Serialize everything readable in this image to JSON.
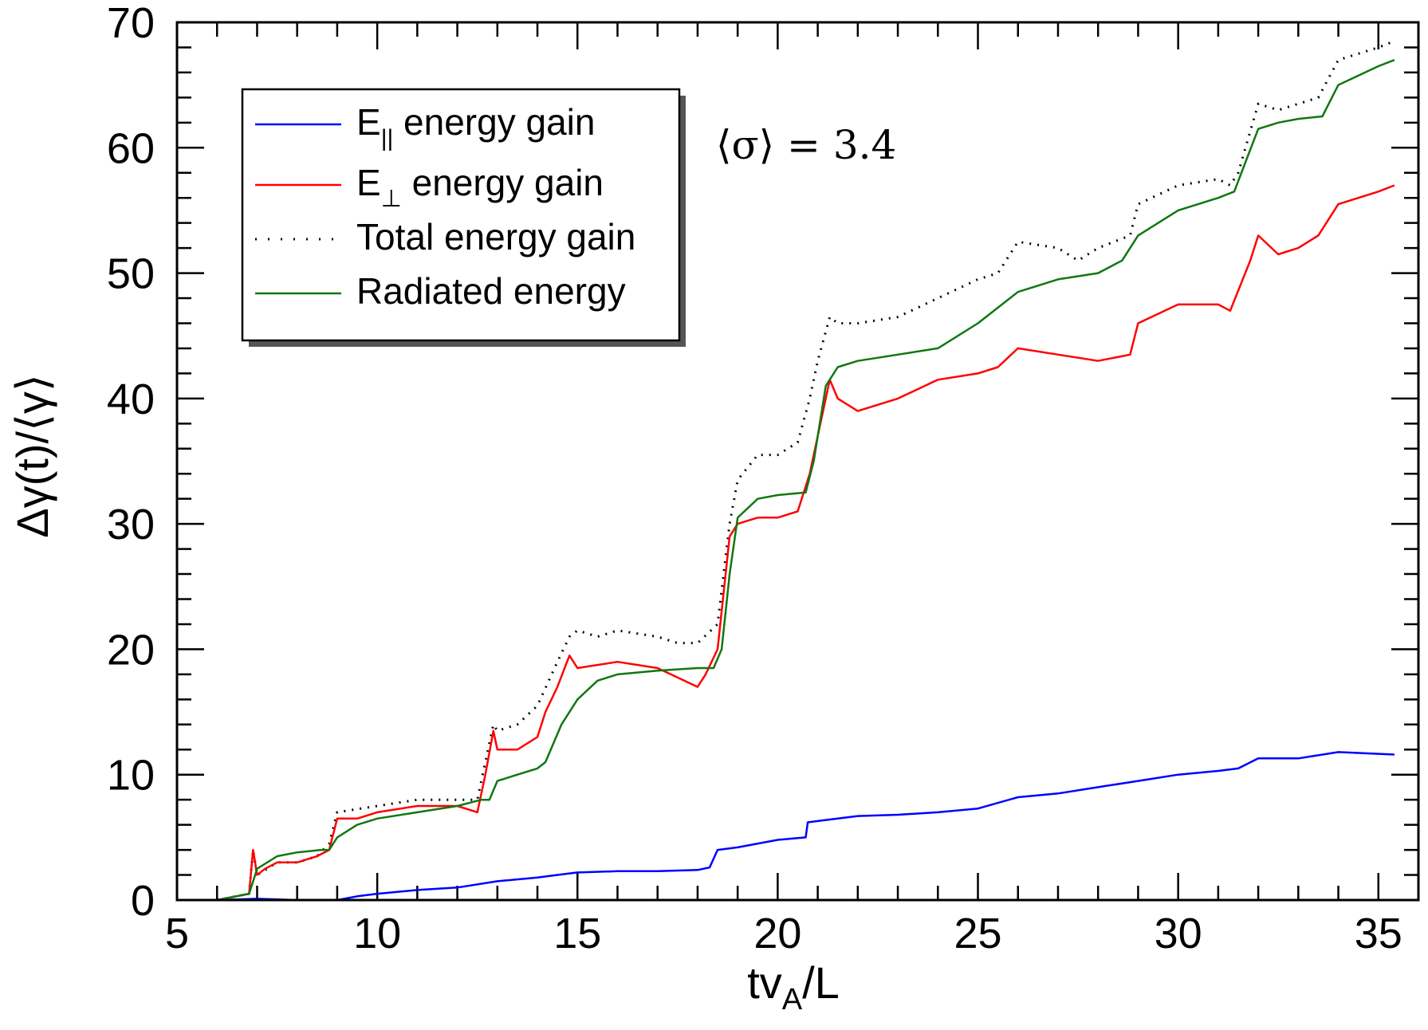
{
  "chart_data": {
    "type": "line",
    "title": "",
    "xlabel": "tv_A/L",
    "xlabel_parts": {
      "main": "tv",
      "sub": "A",
      "tail": "/L"
    },
    "ylabel": "Δγ(t)/⟨γ⟩",
    "xlim": [
      5,
      36
    ],
    "ylim": [
      0,
      70
    ],
    "xticks": [
      5,
      10,
      15,
      20,
      25,
      30,
      35
    ],
    "yticks": [
      0,
      10,
      20,
      30,
      40,
      50,
      60,
      70
    ],
    "annotation": "⟨σ⟩ = 3.4",
    "legend_position": "top-left",
    "series": [
      {
        "name": "E|| energy gain",
        "label_main": "E",
        "label_sub": "||",
        "label_tail": " energy gain",
        "color": "#0000ff",
        "style": "solid",
        "x": [
          6.0,
          7.0,
          8.0,
          9.0,
          9.5,
          10.0,
          11.0,
          12.0,
          13.0,
          14.0,
          14.5,
          15.0,
          16.0,
          17.0,
          18.0,
          18.3,
          18.5,
          19.0,
          20.0,
          20.7,
          20.75,
          21.0,
          22.0,
          23.0,
          24.0,
          25.0,
          26.0,
          27.0,
          28.0,
          29.0,
          30.0,
          31.0,
          31.5,
          32.0,
          33.0,
          34.0,
          35.4
        ],
        "y": [
          0.0,
          0.1,
          0.0,
          0.0,
          0.3,
          0.5,
          0.8,
          1.0,
          1.5,
          1.8,
          2.0,
          2.2,
          2.3,
          2.3,
          2.4,
          2.6,
          4.0,
          4.2,
          4.8,
          5.0,
          6.2,
          6.3,
          6.7,
          6.8,
          7.0,
          7.3,
          8.2,
          8.5,
          9.0,
          9.5,
          10.0,
          10.3,
          10.5,
          11.3,
          11.3,
          11.8,
          11.6
        ]
      },
      {
        "name": "E⊥ energy gain",
        "label_main": "E",
        "label_sub": "⊥",
        "label_tail": " energy gain",
        "color": "#ff0000",
        "style": "solid",
        "x": [
          6.0,
          6.8,
          6.9,
          7.0,
          7.2,
          7.5,
          8.0,
          8.5,
          8.8,
          9.0,
          9.5,
          10.0,
          11.0,
          12.0,
          12.5,
          12.7,
          12.9,
          13.0,
          13.5,
          14.0,
          14.2,
          14.5,
          14.8,
          15.0,
          16.0,
          17.0,
          18.0,
          18.2,
          18.5,
          18.8,
          19.0,
          19.5,
          20.0,
          20.5,
          20.8,
          21.0,
          21.3,
          21.5,
          22.0,
          23.0,
          24.0,
          25.0,
          25.5,
          26.0,
          27.0,
          28.0,
          28.8,
          29.0,
          30.0,
          31.0,
          31.3,
          31.8,
          32.0,
          32.5,
          33.0,
          33.5,
          34.0,
          35.0,
          35.4
        ],
        "y": [
          0.0,
          0.5,
          4.0,
          2.0,
          2.5,
          3.0,
          3.0,
          3.5,
          4.0,
          6.5,
          6.5,
          7.0,
          7.5,
          7.5,
          7.0,
          10.0,
          13.5,
          12.0,
          12.0,
          13.0,
          15.0,
          17.0,
          19.5,
          18.5,
          19.0,
          18.5,
          17.0,
          18.0,
          20.0,
          29.0,
          30.0,
          30.5,
          30.5,
          31.0,
          34.0,
          37.0,
          41.5,
          40.0,
          39.0,
          40.0,
          41.5,
          42.0,
          42.5,
          44.0,
          43.5,
          43.0,
          43.5,
          46.0,
          47.5,
          47.5,
          47.0,
          51.0,
          53.0,
          51.5,
          52.0,
          53.0,
          55.5,
          56.5,
          57.0
        ]
      },
      {
        "name": "Total energy gain",
        "label_main": "Total energy gain",
        "label_sub": "",
        "label_tail": "",
        "color": "#000000",
        "style": "dotted",
        "x": [
          6.0,
          6.8,
          6.9,
          7.0,
          7.5,
          8.0,
          8.5,
          8.8,
          9.0,
          10.0,
          11.0,
          12.0,
          12.5,
          12.7,
          12.9,
          13.0,
          13.5,
          14.0,
          14.5,
          14.8,
          15.0,
          15.5,
          16.0,
          17.0,
          17.5,
          18.0,
          18.5,
          18.8,
          19.0,
          19.5,
          20.0,
          20.5,
          20.8,
          21.0,
          21.3,
          21.5,
          22.0,
          23.0,
          24.0,
          25.0,
          25.5,
          26.0,
          27.0,
          27.5,
          28.0,
          28.8,
          29.0,
          30.0,
          31.0,
          31.3,
          31.5,
          32.0,
          32.5,
          33.0,
          33.5,
          34.0,
          35.0,
          35.4
        ],
        "y": [
          0.0,
          0.5,
          4.0,
          2.0,
          3.0,
          3.0,
          3.5,
          4.5,
          7.0,
          7.5,
          8.0,
          8.0,
          8.0,
          11.0,
          14.0,
          13.5,
          14.0,
          15.5,
          19.0,
          21.0,
          21.5,
          21.0,
          21.5,
          21.0,
          20.5,
          20.5,
          22.0,
          30.0,
          33.5,
          35.5,
          35.5,
          36.5,
          40.0,
          43.0,
          46.5,
          46.0,
          46.0,
          46.5,
          48.0,
          49.5,
          50.0,
          52.5,
          52.0,
          51.0,
          52.0,
          53.0,
          55.5,
          57.0,
          57.5,
          57.0,
          58.0,
          63.5,
          63.0,
          63.5,
          64.0,
          67.0,
          68.0,
          68.5
        ]
      },
      {
        "name": "Radiated energy",
        "label_main": "Radiated energy",
        "label_sub": "",
        "label_tail": "",
        "color": "#117711",
        "style": "solid",
        "x": [
          6.0,
          6.8,
          7.0,
          7.5,
          8.0,
          8.6,
          8.8,
          9.0,
          9.5,
          10.0,
          11.0,
          12.0,
          12.6,
          12.8,
          13.0,
          13.5,
          14.0,
          14.2,
          14.6,
          15.0,
          15.5,
          16.0,
          17.0,
          18.0,
          18.4,
          18.6,
          18.8,
          19.0,
          19.5,
          20.0,
          20.7,
          20.9,
          21.2,
          21.5,
          22.0,
          23.0,
          24.0,
          25.0,
          26.0,
          27.0,
          28.0,
          28.6,
          29.0,
          30.0,
          31.0,
          31.4,
          31.7,
          32.0,
          32.5,
          33.0,
          33.6,
          34.0,
          35.0,
          35.4
        ],
        "y": [
          0.0,
          0.5,
          2.5,
          3.5,
          3.8,
          4.0,
          4.0,
          5.0,
          6.0,
          6.5,
          7.0,
          7.5,
          8.0,
          8.0,
          9.5,
          10.0,
          10.5,
          11.0,
          14.0,
          16.0,
          17.5,
          18.0,
          18.3,
          18.5,
          18.5,
          20.0,
          26.0,
          30.5,
          32.0,
          32.3,
          32.5,
          35.0,
          41.0,
          42.5,
          43.0,
          43.5,
          44.0,
          46.0,
          48.5,
          49.5,
          50.0,
          51.0,
          53.0,
          55.0,
          56.0,
          56.5,
          59.0,
          61.5,
          62.0,
          62.3,
          62.5,
          65.0,
          66.5,
          67.0
        ]
      }
    ]
  }
}
